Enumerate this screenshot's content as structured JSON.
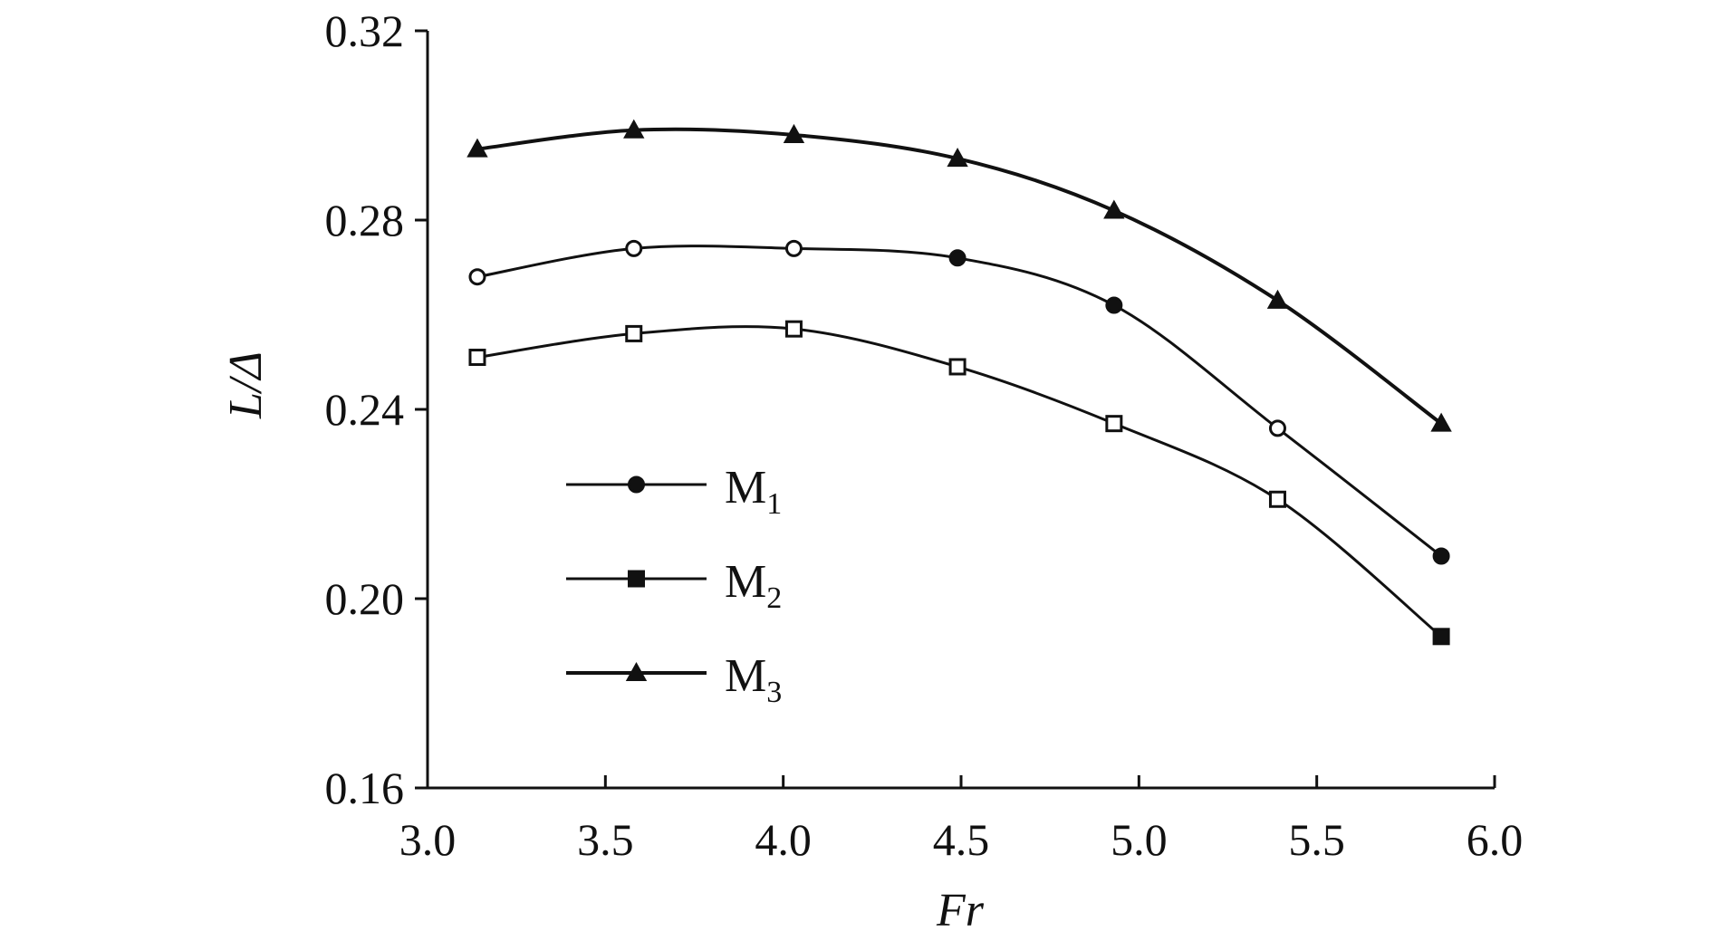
{
  "chart_data": {
    "type": "line",
    "title": "",
    "xlabel": "Fr",
    "ylabel": "L/Δ",
    "xlim": [
      3.0,
      6.0
    ],
    "ylim": [
      0.16,
      0.32
    ],
    "xticks": [
      3.0,
      3.5,
      4.0,
      4.5,
      5.0,
      5.5,
      6.0
    ],
    "yticks": [
      0.16,
      0.2,
      0.24,
      0.28,
      0.32
    ],
    "xtick_labels": [
      "3.0",
      "3.5",
      "4.0",
      "4.5",
      "5.0",
      "5.5",
      "6.0"
    ],
    "ytick_labels": [
      "0.16",
      "0.20",
      "0.24",
      "0.28",
      "0.32"
    ],
    "x": [
      3.14,
      3.58,
      4.03,
      4.49,
      4.93,
      5.39,
      5.85
    ],
    "series": [
      {
        "name": "M1",
        "base": "M",
        "sub": "1",
        "marker": "circle",
        "values": [
          0.268,
          0.274,
          0.274,
          0.272,
          0.262,
          0.236,
          0.209
        ]
      },
      {
        "name": "M2",
        "base": "M",
        "sub": "2",
        "marker": "square",
        "values": [
          0.251,
          0.256,
          0.257,
          0.249,
          0.237,
          0.221,
          0.192
        ]
      },
      {
        "name": "M3",
        "base": "M",
        "sub": "3",
        "marker": "triangle",
        "values": [
          0.295,
          0.299,
          0.298,
          0.293,
          0.282,
          0.263,
          0.237
        ]
      }
    ],
    "grid": false,
    "legend_position": "lower-left"
  }
}
